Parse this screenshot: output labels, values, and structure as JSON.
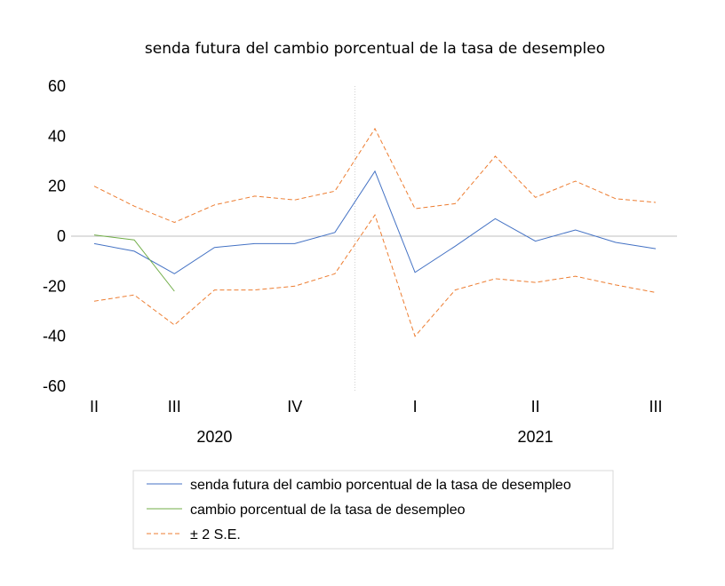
{
  "chart_data": {
    "type": "line",
    "title": "senda futura del cambio porcentual de la tasa de desempleo",
    "xlabel": "",
    "ylabel": "",
    "ylim": [
      -60,
      60
    ],
    "yticks": [
      "60",
      "40",
      "20",
      "0",
      "-20",
      "-40",
      "-60"
    ],
    "ytick_values": [
      60,
      40,
      20,
      0,
      -20,
      -40,
      -60
    ],
    "x": [
      0,
      1,
      2,
      3,
      4,
      5,
      6,
      7,
      8,
      9,
      10,
      11,
      12,
      13,
      14
    ],
    "x_tick_labels": [
      {
        "at": 0,
        "label": "II"
      },
      {
        "at": 2,
        "label": "III"
      },
      {
        "at": 5,
        "label": "IV"
      },
      {
        "at": 8,
        "label": "I"
      },
      {
        "at": 11,
        "label": "II"
      },
      {
        "at": 14,
        "label": "III"
      }
    ],
    "year_labels": [
      {
        "at": 3,
        "label": "2020"
      },
      {
        "at": 11,
        "label": "2021"
      }
    ],
    "forecast_start_x": 7,
    "series": [
      {
        "name": "senda futura del cambio porcentual de la tasa de desempleo",
        "color": "#4472c4",
        "dash": "solid",
        "values": [
          -3,
          -6,
          -15,
          -4.5,
          -3,
          -3,
          1.5,
          26,
          -14.5,
          -4,
          7,
          -2,
          2.5,
          -2.5,
          -5
        ]
      },
      {
        "name": "cambio porcentual de la tasa de desempleo",
        "color": "#70ad47",
        "dash": "solid",
        "values": [
          0.5,
          -1.5,
          -22,
          null,
          null,
          null,
          null,
          null,
          null,
          null,
          null,
          null,
          null,
          null,
          null
        ]
      },
      {
        "name": "± 2 S.E.",
        "color": "#ed7d31",
        "dash": "dashed",
        "values": [
          20,
          12,
          5.5,
          12.5,
          16,
          14.5,
          18,
          43,
          11,
          13,
          32,
          15.5,
          22,
          15,
          13.5
        ]
      },
      {
        "name": "± 2 S.E.",
        "legend": false,
        "color": "#ed7d31",
        "dash": "dashed",
        "values": [
          -26,
          -23.5,
          -35.5,
          -21.5,
          -21.5,
          -20,
          -15,
          8.5,
          -40,
          -21.5,
          -17,
          -18.5,
          -16,
          -19.5,
          -22.5
        ]
      }
    ],
    "grid": false,
    "legend_position": "bottom"
  }
}
